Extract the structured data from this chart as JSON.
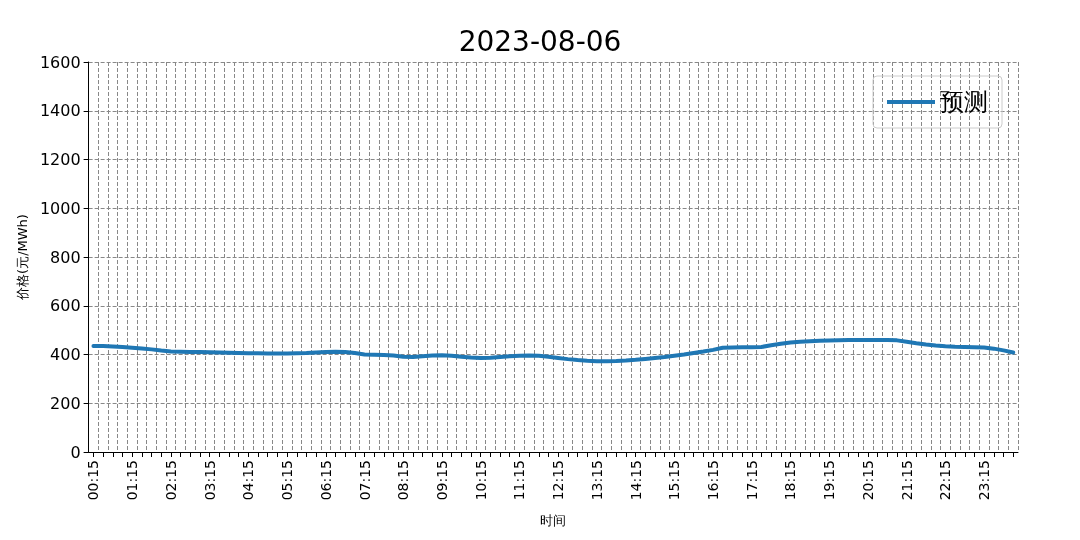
{
  "chart_data": {
    "type": "line",
    "title": "2023-08-06",
    "xlabel": "时间",
    "ylabel": "价格(元/MWh)",
    "categories": [
      "00:15",
      null,
      null,
      null,
      "01:15",
      null,
      null,
      null,
      "02:15",
      null,
      null,
      null,
      "03:15",
      null,
      null,
      null,
      "04:15",
      null,
      null,
      null,
      "05:15",
      null,
      null,
      null,
      "06:15",
      null,
      null,
      null,
      "07:15",
      null,
      null,
      null,
      "08:15",
      null,
      null,
      null,
      "09:15",
      null,
      null,
      null,
      "10:15",
      null,
      null,
      null,
      "11:15",
      null,
      null,
      null,
      "12:15",
      null,
      null,
      null,
      "13:15",
      null,
      null,
      null,
      "14:15",
      null,
      null,
      null,
      "15:15",
      null,
      null,
      null,
      "16:15",
      null,
      null,
      null,
      "17:15",
      null,
      null,
      null,
      "18:15",
      null,
      null,
      null,
      "19:15",
      null,
      null,
      null,
      "20:15",
      null,
      null,
      null,
      "21:15",
      null,
      null,
      null,
      "22:15",
      null,
      null,
      null,
      "23:15",
      null,
      null,
      null
    ],
    "series": [
      {
        "name": "预测",
        "color": "#1f77b4",
        "values": [
          435,
          435,
          433,
          431,
          428,
          425,
          421,
          416,
          412,
          411,
          410,
          410,
          409,
          408,
          407,
          406,
          405,
          405,
          404,
          404,
          404,
          405,
          406,
          408,
          410,
          411,
          410,
          406,
          400,
          399,
          398,
          396,
          391,
          390,
          393,
          396,
          397,
          395,
          391,
          388,
          386,
          387,
          390,
          393,
          395,
          396,
          395,
          391,
          386,
          381,
          377,
          374,
          372,
          372,
          373,
          375,
          378,
          382,
          386,
          390,
          395,
          400,
          406,
          412,
          419,
          428,
          429,
          430,
          430,
          431,
          438,
          444,
          449,
          452,
          454,
          456,
          457,
          458,
          459,
          459,
          459,
          459,
          459,
          458,
          452,
          446,
          441,
          437,
          434,
          432,
          431,
          430,
          429,
          424,
          417,
          408
        ]
      }
    ],
    "ylim": [
      0,
      1600
    ],
    "yticks": [
      0,
      200,
      400,
      600,
      800,
      1000,
      1200,
      1400,
      1600
    ],
    "grid": true,
    "legend": "top right",
    "marker": "none",
    "line_style": "solid"
  }
}
